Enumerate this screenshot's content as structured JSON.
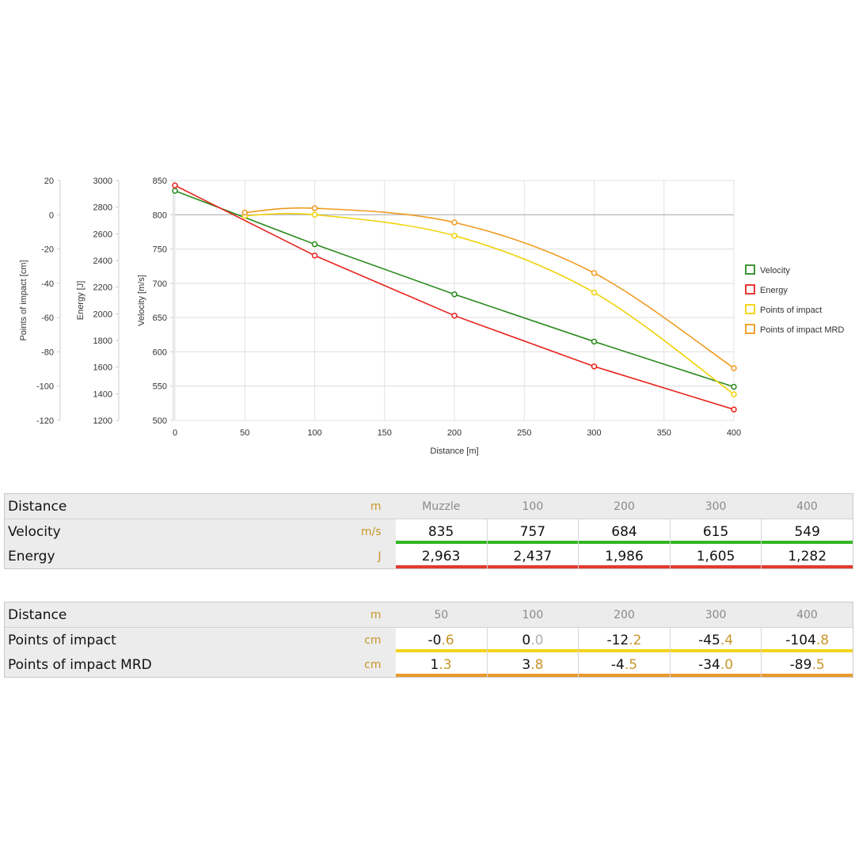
{
  "chart_data": {
    "type": "line",
    "xlabel": "Distance [m]",
    "x_ticks": [
      "0",
      "50",
      "100",
      "150",
      "200",
      "250",
      "300",
      "350",
      "400"
    ],
    "xlim": [
      0,
      400
    ],
    "grid": true,
    "legend_position": "right",
    "axes": [
      {
        "id": "poi",
        "title": "Points of impact [cm]",
        "ticks": [
          "20",
          "0",
          "-20",
          "-40",
          "-60",
          "-80",
          "-100",
          "-120"
        ],
        "range": [
          -120,
          20
        ]
      },
      {
        "id": "energy",
        "title": "Energy [J]",
        "ticks": [
          "3000",
          "2800",
          "2600",
          "2400",
          "2200",
          "2000",
          "1800",
          "1600",
          "1400",
          "1200"
        ],
        "range": [
          1200,
          3000
        ]
      },
      {
        "id": "velocity",
        "title": "Velocity [m/s]",
        "ticks": [
          "850",
          "800",
          "750",
          "700",
          "650",
          "600",
          "550",
          "500"
        ],
        "range": [
          500,
          850
        ]
      }
    ],
    "series": [
      {
        "name": "Velocity",
        "axis": "velocity",
        "color": "#2a8a1e",
        "smooth": false,
        "x": [
          0,
          100,
          200,
          300,
          400
        ],
        "y": [
          835,
          757,
          684,
          615,
          549
        ]
      },
      {
        "name": "Energy",
        "axis": "energy",
        "color": "#e8231d",
        "smooth": false,
        "x": [
          0,
          100,
          200,
          300,
          400
        ],
        "y": [
          2963,
          2437,
          1986,
          1605,
          1282
        ]
      },
      {
        "name": "Points of impact",
        "axis": "poi",
        "color": "#f0d20a",
        "smooth": true,
        "x": [
          50,
          100,
          200,
          300,
          400
        ],
        "y": [
          -0.6,
          0.0,
          -12.2,
          -45.4,
          -104.8
        ]
      },
      {
        "name": "Points of impact MRD",
        "axis": "poi",
        "color": "#f09a1e",
        "smooth": true,
        "x": [
          50,
          100,
          200,
          300,
          400
        ],
        "y": [
          1.3,
          3.8,
          -4.5,
          -34.0,
          -89.5
        ]
      }
    ]
  },
  "tables": [
    {
      "header": {
        "label": "Distance",
        "unit": "m",
        "columns": [
          "Muzzle",
          "100",
          "200",
          "300",
          "400"
        ]
      },
      "rows": [
        {
          "label": "Velocity",
          "unit": "m/s",
          "bar_color": "#33b524",
          "values": [
            {
              "int": "835",
              "frac": ""
            },
            {
              "int": "757",
              "frac": ""
            },
            {
              "int": "684",
              "frac": ""
            },
            {
              "int": "615",
              "frac": ""
            },
            {
              "int": "549",
              "frac": ""
            }
          ]
        },
        {
          "label": "Energy",
          "unit": "J",
          "bar_color": "#e23a2e",
          "values": [
            {
              "int": "2,963",
              "frac": ""
            },
            {
              "int": "2,437",
              "frac": ""
            },
            {
              "int": "1,986",
              "frac": ""
            },
            {
              "int": "1,605",
              "frac": ""
            },
            {
              "int": "1,282",
              "frac": ""
            }
          ]
        }
      ]
    },
    {
      "header": {
        "label": "Distance",
        "unit": "m",
        "columns": [
          "50",
          "100",
          "200",
          "300",
          "400"
        ]
      },
      "rows": [
        {
          "label": "Points of impact",
          "unit": "cm",
          "bar_color": "#f2d41c",
          "values": [
            {
              "int": "-0",
              "frac": ".6"
            },
            {
              "int": "0",
              "frac": ".0",
              "muted": true
            },
            {
              "int": "-12",
              "frac": ".2"
            },
            {
              "int": "-45",
              "frac": ".4"
            },
            {
              "int": "-104",
              "frac": ".8"
            }
          ]
        },
        {
          "label": "Points of impact MRD",
          "unit": "cm",
          "bar_color": "#e89a2c",
          "values": [
            {
              "int": "1",
              "frac": ".3"
            },
            {
              "int": "3",
              "frac": ".8"
            },
            {
              "int": "-4",
              "frac": ".5"
            },
            {
              "int": "-34",
              "frac": ".0"
            },
            {
              "int": "-89",
              "frac": ".5"
            }
          ]
        }
      ]
    }
  ]
}
